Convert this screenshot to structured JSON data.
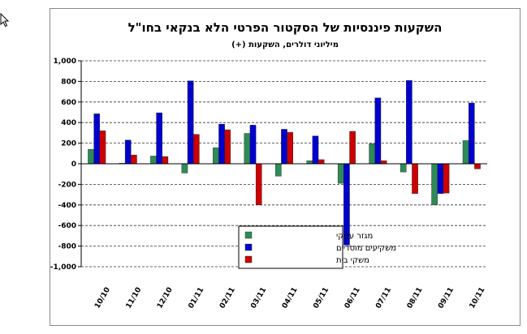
{
  "chart_data": {
    "type": "bar",
    "title": "השקעות פיננסיות של הסקטור הפרטי הלא בנקאי בחו\"ל",
    "subtitle": "מיליוני דולרים, השקעות (+)",
    "xlabel": "",
    "ylabel": "",
    "ylim": [
      -1000,
      1000
    ],
    "yticks": [
      1000,
      800,
      600,
      400,
      200,
      0,
      -200,
      -400,
      -600,
      -800,
      -1000
    ],
    "ytick_labels": [
      "1,000",
      "800",
      "600",
      "400",
      "200",
      "0",
      "-200",
      "-400",
      "-600",
      "-800",
      "-1,000"
    ],
    "grid": true,
    "legend_position": "bottom-center",
    "categories": [
      "10/10",
      "11/10",
      "12/10",
      "01/11",
      "02/11",
      "03/11",
      "04/11",
      "05/11",
      "06/11",
      "07/11",
      "08/11",
      "09/11",
      "10/11"
    ],
    "series": [
      {
        "name": "מגזר עסקי",
        "color": "#2e8b57",
        "values": [
          140,
          5,
          75,
          -90,
          155,
          295,
          -120,
          30,
          -190,
          195,
          -80,
          -400,
          225
        ]
      },
      {
        "name": "משקיעים מוסדיים",
        "color": "#0000cc",
        "values": [
          485,
          230,
          495,
          805,
          385,
          375,
          335,
          270,
          -790,
          640,
          810,
          -290,
          590
        ]
      },
      {
        "name": "משקי בית",
        "color": "#cc0000",
        "values": [
          320,
          85,
          70,
          285,
          330,
          -400,
          305,
          40,
          315,
          30,
          -290,
          -285,
          -50
        ]
      }
    ]
  }
}
